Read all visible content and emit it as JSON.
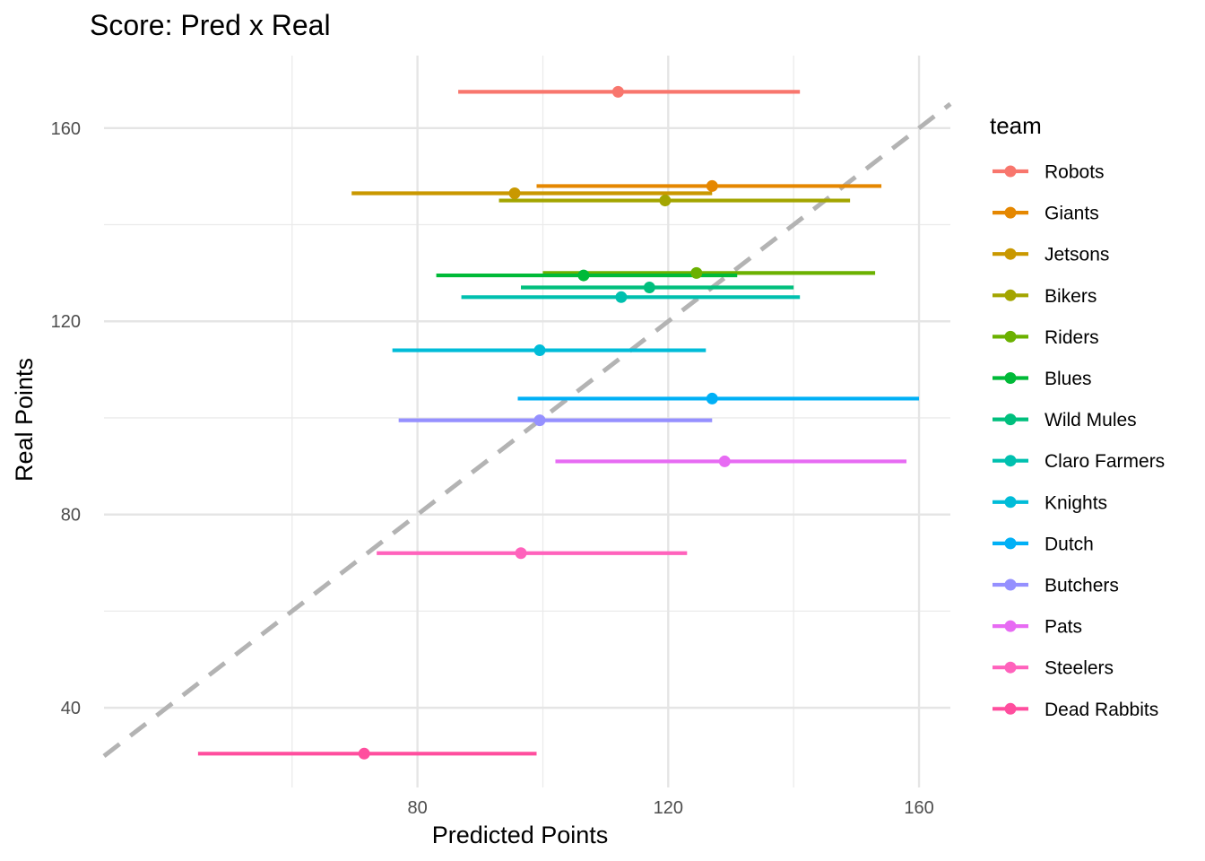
{
  "chart_data": {
    "type": "scatter",
    "title": "Score: Pred x Real",
    "xlabel": "Predicted Points",
    "ylabel": "Real Points",
    "xlim": [
      30,
      165
    ],
    "ylim": [
      23.5,
      175
    ],
    "x_ticks": [
      80,
      120,
      160
    ],
    "y_ticks": [
      40,
      80,
      120,
      160
    ],
    "x_minor": [
      60,
      100,
      140
    ],
    "y_minor": [
      60,
      100,
      140
    ],
    "grid": true,
    "legend_position": "right",
    "legend_title": "team",
    "reference_line": {
      "slope": 1,
      "intercept": 0,
      "style": "dashed",
      "color": "#b3b3b3"
    },
    "series": [
      {
        "name": "Robots",
        "color": "#F8766D",
        "x": 112,
        "y": 167.5,
        "xmin": 86.5,
        "xmax": 141
      },
      {
        "name": "Giants",
        "color": "#E58700",
        "x": 127,
        "y": 148,
        "xmin": 99,
        "xmax": 154
      },
      {
        "name": "Jetsons",
        "color": "#C99800",
        "x": 95.5,
        "y": 146.5,
        "xmin": 69.5,
        "xmax": 127
      },
      {
        "name": "Bikers",
        "color": "#A3A500",
        "x": 119.5,
        "y": 145,
        "xmin": 93,
        "xmax": 149
      },
      {
        "name": "Riders",
        "color": "#6BB100",
        "x": 124.5,
        "y": 130,
        "xmin": 100,
        "xmax": 153
      },
      {
        "name": "Blues",
        "color": "#00BA38",
        "x": 106.5,
        "y": 129.5,
        "xmin": 83,
        "xmax": 131
      },
      {
        "name": "Wild Mules",
        "color": "#00BF7D",
        "x": 117,
        "y": 127,
        "xmin": 96.5,
        "xmax": 140
      },
      {
        "name": "Claro Farmers",
        "color": "#00C0AF",
        "x": 112.5,
        "y": 125,
        "xmin": 87,
        "xmax": 141
      },
      {
        "name": "Knights",
        "color": "#00BCD8",
        "x": 99.5,
        "y": 114,
        "xmin": 76,
        "xmax": 126
      },
      {
        "name": "Dutch",
        "color": "#00B0F6",
        "x": 127,
        "y": 104,
        "xmin": 96,
        "xmax": 160
      },
      {
        "name": "Butchers",
        "color": "#9590FF",
        "x": 99.5,
        "y": 99.5,
        "xmin": 77,
        "xmax": 127
      },
      {
        "name": "Pats",
        "color": "#E76BF3",
        "x": 129,
        "y": 91,
        "xmin": 102,
        "xmax": 158
      },
      {
        "name": "Steelers",
        "color": "#FF62BC",
        "x": 96.5,
        "y": 72,
        "xmin": 73.5,
        "xmax": 123
      },
      {
        "name": "Dead Rabbits",
        "color": "#FF4E9E",
        "x": 71.5,
        "y": 30.5,
        "xmin": 45,
        "xmax": 99
      }
    ]
  }
}
